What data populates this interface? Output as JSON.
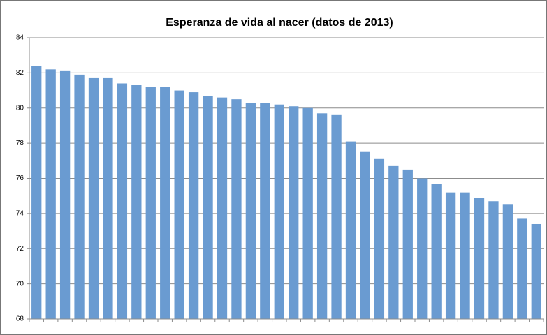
{
  "chart_data": {
    "type": "bar",
    "title": "Esperanza de vida al nacer (datos de 2013)",
    "categories": [
      null,
      null,
      null,
      null,
      null,
      null,
      null,
      null,
      null,
      null,
      null,
      null,
      null,
      null,
      null,
      null,
      null,
      null,
      null,
      null,
      null,
      null,
      null,
      null,
      null,
      null,
      null,
      null,
      null,
      null,
      null,
      null,
      null,
      null,
      null,
      null
    ],
    "values": [
      82.4,
      82.2,
      82.1,
      81.9,
      81.7,
      81.7,
      81.4,
      81.3,
      81.2,
      81.2,
      81.0,
      80.9,
      80.7,
      80.6,
      80.5,
      80.3,
      80.3,
      80.2,
      80.1,
      80.0,
      79.7,
      79.6,
      78.1,
      77.5,
      77.1,
      76.7,
      76.5,
      76.0,
      75.7,
      75.2,
      75.2,
      74.9,
      74.7,
      74.5,
      73.7,
      73.4
    ],
    "color": "#6a9bd1",
    "ylim": [
      68,
      84
    ],
    "yticks": [
      68,
      70,
      72,
      74,
      76,
      78,
      80,
      82,
      84
    ],
    "grid": true
  }
}
